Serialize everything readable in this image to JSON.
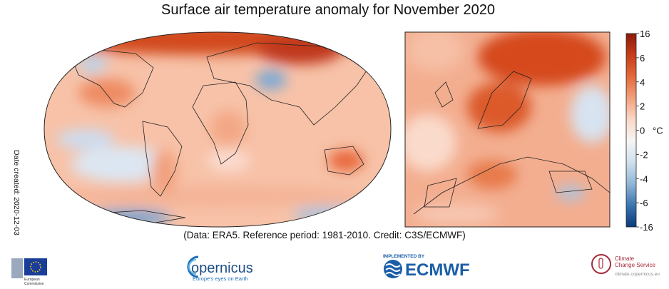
{
  "title": "Surface air temperature anomaly for November 2020",
  "colorbar": {
    "ticks": [
      16,
      6,
      4,
      2,
      0,
      -2,
      -4,
      -6,
      -16
    ],
    "unit": "°C",
    "colors": [
      "#8b1a0a",
      "#c63d17",
      "#e26a3c",
      "#f2a07c",
      "#fbd8c6",
      "#f5f5f5",
      "#cfe0ee",
      "#8fb6d6",
      "#3a75b0",
      "#0c3a78"
    ]
  },
  "date_created": "Date created: 2020-12-03",
  "credit": "(Data: ERA5.  Reference period: 1981-2010.  Credit: C3S/ECMWF)",
  "logos": {
    "eu": {
      "line1": "European",
      "line2": "Commission"
    },
    "copernicus": {
      "name": "opernicus",
      "tagline": "Europe's eyes on Earth"
    },
    "ecmwf": {
      "implemented": "IMPLEMENTED BY",
      "name": "ECMWF"
    },
    "c3s": {
      "line1": "Climate",
      "line2": "Change Service",
      "url": "climate.copernicus.eu"
    }
  }
}
